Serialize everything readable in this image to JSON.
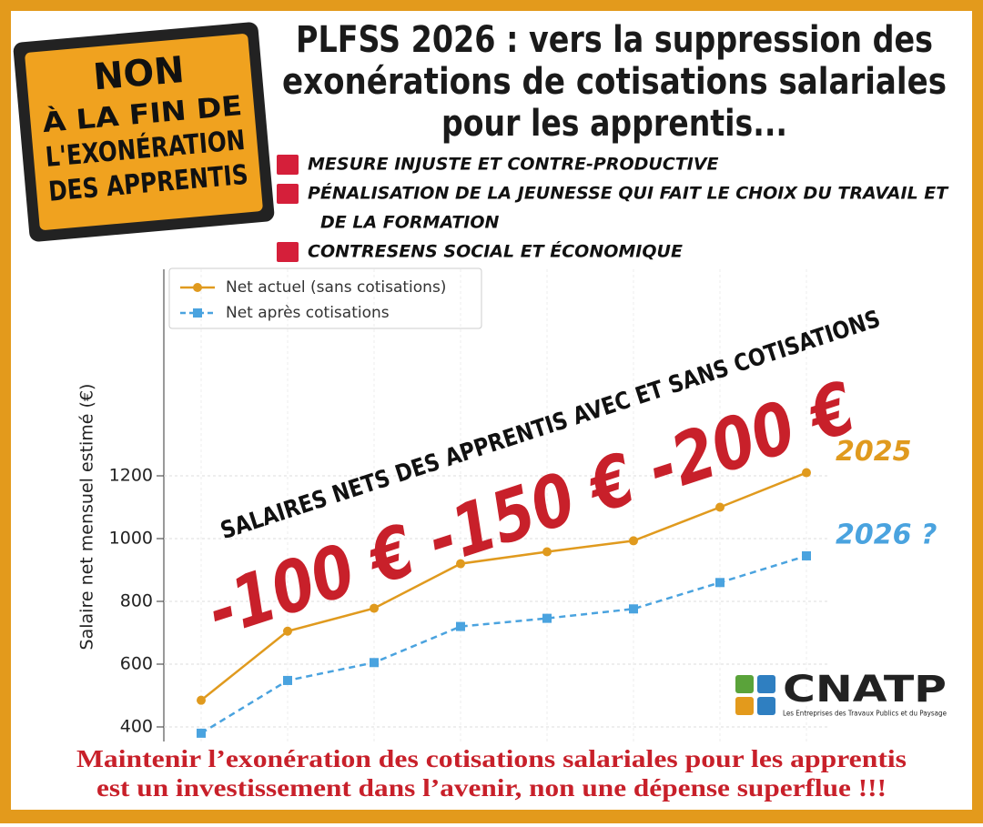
{
  "sign": {
    "lines": [
      "NON",
      "À LA FIN DE",
      "L'EXONÉRATION",
      "DES APPRENTIS"
    ]
  },
  "header": {
    "title_lines": [
      "PLFSS 2026 : vers la suppression des",
      "exonérations de cotisations salariales",
      "pour les apprentis..."
    ]
  },
  "bullets": [
    [
      "MESURE INJUSTE ET CONTRE-PRODUCTIVE"
    ],
    [
      "PÉNALISATION DE LA JEUNESSE QUI FAIT LE CHOIX DU TRAVAIL ET",
      "DE LA FORMATION"
    ],
    [
      "CONTRESENS SOCIAL ET ÉCONOMIQUE"
    ]
  ],
  "chart_data": {
    "type": "line",
    "y_label": "Salaire net mensuel estimé (€)",
    "categories": [
      null,
      null,
      null,
      null,
      null,
      null,
      null,
      null
    ],
    "series": [
      {
        "name": "Net actuel (sans cotisations)",
        "color": "#e09a1e",
        "dash": false,
        "marker": "circle",
        "values": [
          485,
          705,
          778,
          920,
          958,
          993,
          1100,
          1210
        ],
        "end_label": "2025"
      },
      {
        "name": "Net après cotisations",
        "color": "#4aa3df",
        "dash": true,
        "marker": "square",
        "values": [
          380,
          548,
          605,
          720,
          746,
          776,
          860,
          945
        ],
        "end_label": "2026 ?"
      }
    ],
    "ylim": [
      370,
      1850
    ],
    "yticks": [
      400,
      600,
      800,
      1000,
      1200
    ],
    "grid": true,
    "legend": "upper left",
    "annotations": [
      "SALAIRES NETS DES APPRENTIS  AVEC ET SANS COTISATIONS",
      "-100 € -150 € -200 €"
    ]
  },
  "logo": {
    "name": "CNATP",
    "tagline": "Les Entreprises des Travaux Publics et du Paysage"
  },
  "footer": {
    "lines": [
      "Maintenir l’exonération des cotisations salariales pour les apprentis",
      "est un investissement dans l’avenir, non une dépense superflue !!!"
    ]
  }
}
